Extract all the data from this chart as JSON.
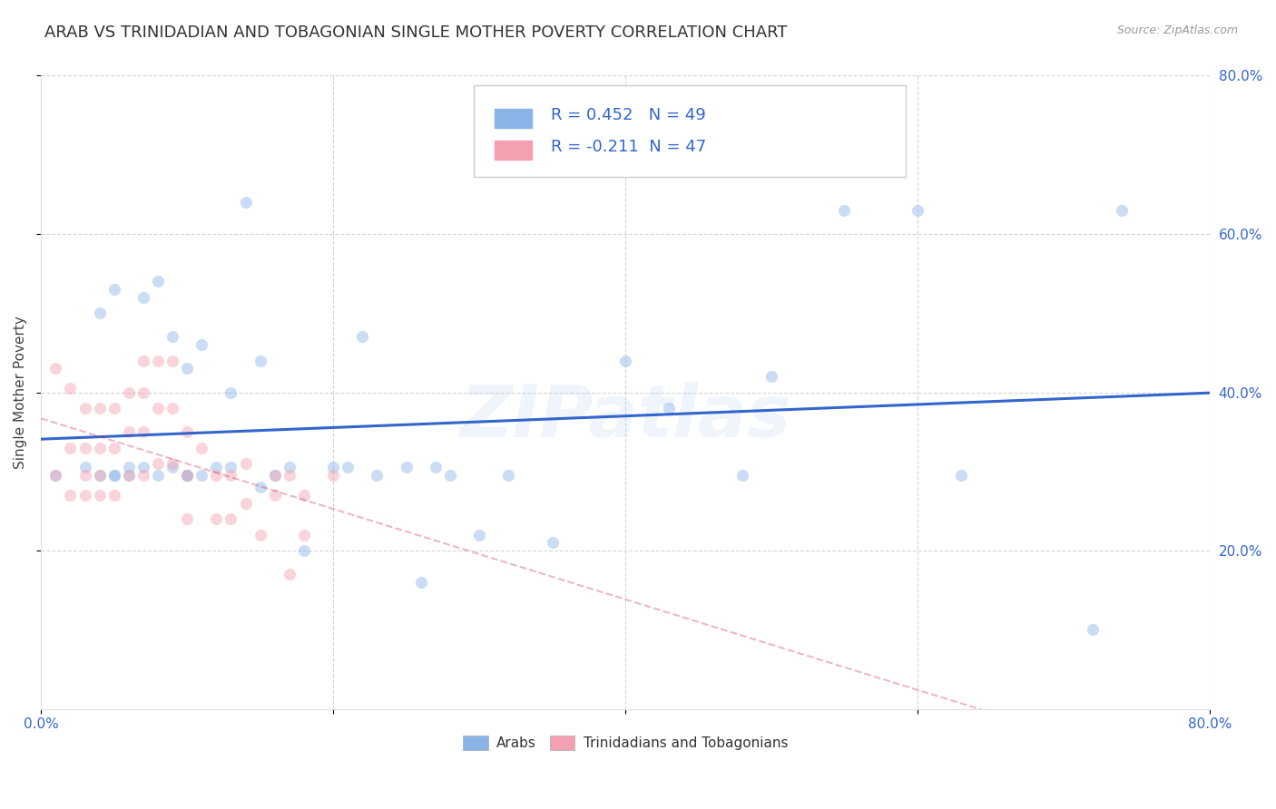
{
  "title": "ARAB VS TRINIDADIAN AND TOBAGONIAN SINGLE MOTHER POVERTY CORRELATION CHART",
  "source": "Source: ZipAtlas.com",
  "ylabel": "Single Mother Poverty",
  "xlim": [
    0.0,
    0.8
  ],
  "ylim": [
    0.0,
    0.8
  ],
  "xtick_labels": [
    "0.0%",
    "",
    "",
    "",
    "80.0%"
  ],
  "xtick_vals": [
    0.0,
    0.2,
    0.4,
    0.6,
    0.8
  ],
  "ytick_labels": [
    "20.0%",
    "40.0%",
    "60.0%",
    "80.0%"
  ],
  "ytick_vals": [
    0.2,
    0.4,
    0.6,
    0.8
  ],
  "watermark": "ZIPatlas",
  "arab_color": "#8AB4E8",
  "trin_color": "#F4A0B0",
  "arab_line_color": "#3366CC",
  "trin_line_color": "#CC3355",
  "arab_scatter_x": [
    0.01,
    0.03,
    0.04,
    0.04,
    0.05,
    0.05,
    0.05,
    0.06,
    0.06,
    0.07,
    0.07,
    0.08,
    0.08,
    0.09,
    0.09,
    0.1,
    0.1,
    0.1,
    0.11,
    0.11,
    0.12,
    0.13,
    0.13,
    0.14,
    0.15,
    0.15,
    0.16,
    0.17,
    0.18,
    0.2,
    0.21,
    0.22,
    0.23,
    0.25,
    0.26,
    0.27,
    0.28,
    0.3,
    0.32,
    0.35,
    0.4,
    0.43,
    0.48,
    0.5,
    0.55,
    0.6,
    0.63,
    0.72,
    0.74
  ],
  "arab_scatter_y": [
    0.295,
    0.305,
    0.295,
    0.5,
    0.295,
    0.53,
    0.295,
    0.305,
    0.295,
    0.305,
    0.52,
    0.295,
    0.54,
    0.305,
    0.47,
    0.295,
    0.43,
    0.295,
    0.46,
    0.295,
    0.305,
    0.305,
    0.4,
    0.64,
    0.28,
    0.44,
    0.295,
    0.305,
    0.2,
    0.305,
    0.305,
    0.47,
    0.295,
    0.305,
    0.16,
    0.305,
    0.295,
    0.22,
    0.295,
    0.21,
    0.44,
    0.38,
    0.295,
    0.42,
    0.63,
    0.63,
    0.295,
    0.1,
    0.63
  ],
  "trin_scatter_x": [
    0.01,
    0.01,
    0.02,
    0.02,
    0.02,
    0.03,
    0.03,
    0.03,
    0.03,
    0.04,
    0.04,
    0.04,
    0.04,
    0.05,
    0.05,
    0.05,
    0.06,
    0.06,
    0.06,
    0.07,
    0.07,
    0.07,
    0.07,
    0.08,
    0.08,
    0.08,
    0.09,
    0.09,
    0.09,
    0.1,
    0.1,
    0.1,
    0.11,
    0.12,
    0.12,
    0.13,
    0.13,
    0.14,
    0.14,
    0.15,
    0.16,
    0.16,
    0.17,
    0.17,
    0.18,
    0.18,
    0.2
  ],
  "trin_scatter_y": [
    0.295,
    0.43,
    0.33,
    0.405,
    0.27,
    0.38,
    0.33,
    0.27,
    0.295,
    0.38,
    0.33,
    0.27,
    0.295,
    0.38,
    0.33,
    0.27,
    0.4,
    0.35,
    0.295,
    0.44,
    0.4,
    0.35,
    0.295,
    0.44,
    0.38,
    0.31,
    0.44,
    0.38,
    0.31,
    0.35,
    0.295,
    0.24,
    0.33,
    0.295,
    0.24,
    0.295,
    0.24,
    0.31,
    0.26,
    0.22,
    0.27,
    0.295,
    0.295,
    0.17,
    0.27,
    0.22,
    0.295
  ],
  "background_color": "#FFFFFF",
  "grid_color": "#CCCCCC",
  "title_fontsize": 13,
  "label_fontsize": 11,
  "tick_fontsize": 11,
  "scatter_size": 90,
  "scatter_alpha": 0.45,
  "arab_R": 0.452,
  "arab_N": 49,
  "trin_R": -0.211,
  "trin_N": 47
}
